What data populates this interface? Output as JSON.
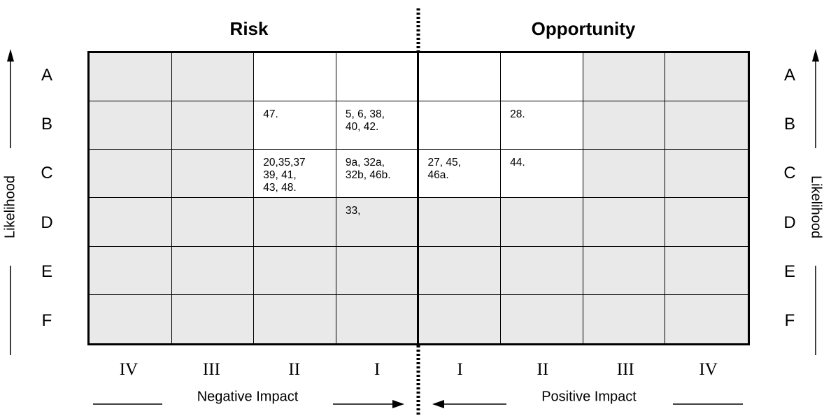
{
  "headers": {
    "risk": "Risk",
    "opportunity": "Opportunity"
  },
  "rows": [
    "A",
    "B",
    "C",
    "D",
    "E",
    "F"
  ],
  "columns": [
    "IV",
    "III",
    "II",
    "I",
    "I",
    "II",
    "III",
    "IV"
  ],
  "axis": {
    "likelihood": "Likelihood",
    "negative_impact": "Negative Impact",
    "positive_impact": "Positive Impact"
  },
  "cells": [
    {
      "text": "",
      "highlight": false
    },
    {
      "text": "",
      "highlight": false
    },
    {
      "text": "",
      "highlight": true
    },
    {
      "text": "",
      "highlight": true
    },
    {
      "text": "",
      "highlight": true
    },
    {
      "text": "",
      "highlight": true
    },
    {
      "text": "",
      "highlight": false
    },
    {
      "text": "",
      "highlight": false
    },
    {
      "text": "",
      "highlight": false
    },
    {
      "text": "",
      "highlight": false
    },
    {
      "text": "47.",
      "highlight": true
    },
    {
      "text": "5, 6, 38,\n40, 42.",
      "highlight": true
    },
    {
      "text": "",
      "highlight": true
    },
    {
      "text": "28.",
      "highlight": true
    },
    {
      "text": "",
      "highlight": false
    },
    {
      "text": "",
      "highlight": false
    },
    {
      "text": "",
      "highlight": false
    },
    {
      "text": "",
      "highlight": false
    },
    {
      "text": "20,35,37\n39, 41,\n43, 48.",
      "highlight": true
    },
    {
      "text": "9a, 32a,\n32b, 46b.",
      "highlight": true
    },
    {
      "text": "27, 45,\n46a.",
      "highlight": true
    },
    {
      "text": "44.",
      "highlight": true
    },
    {
      "text": "",
      "highlight": false
    },
    {
      "text": "",
      "highlight": false
    },
    {
      "text": "",
      "highlight": false
    },
    {
      "text": "",
      "highlight": false
    },
    {
      "text": "",
      "highlight": false
    },
    {
      "text": "33,",
      "highlight": false
    },
    {
      "text": "",
      "highlight": false
    },
    {
      "text": "",
      "highlight": false
    },
    {
      "text": "",
      "highlight": false
    },
    {
      "text": "",
      "highlight": false
    },
    {
      "text": "",
      "highlight": false
    },
    {
      "text": "",
      "highlight": false
    },
    {
      "text": "",
      "highlight": false
    },
    {
      "text": "",
      "highlight": false
    },
    {
      "text": "",
      "highlight": false
    },
    {
      "text": "",
      "highlight": false
    },
    {
      "text": "",
      "highlight": false
    },
    {
      "text": "",
      "highlight": false
    },
    {
      "text": "",
      "highlight": false
    },
    {
      "text": "",
      "highlight": false
    },
    {
      "text": "",
      "highlight": false
    },
    {
      "text": "",
      "highlight": false
    },
    {
      "text": "",
      "highlight": false
    },
    {
      "text": "",
      "highlight": false
    },
    {
      "text": "",
      "highlight": false
    },
    {
      "text": "",
      "highlight": false
    }
  ],
  "colors": {
    "shaded": "#e9e9e9",
    "highlight": "#ffffff",
    "line": "#000000"
  }
}
